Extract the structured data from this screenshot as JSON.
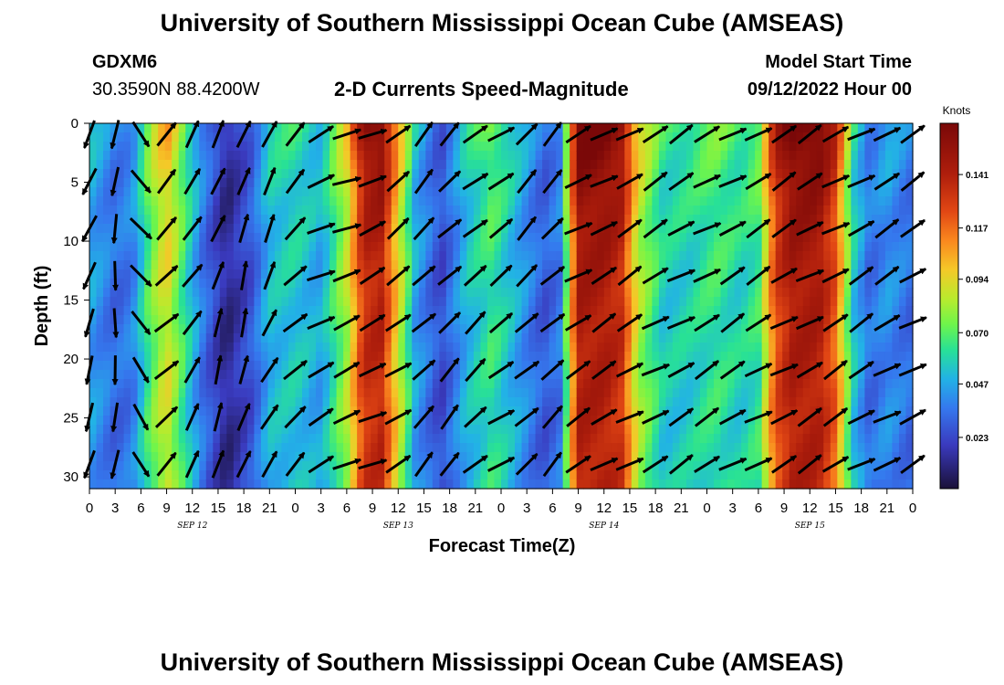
{
  "title": "University of Southern Mississippi Ocean Cube (AMSEAS)",
  "title_repeat": "University of Southern Mississippi Ocean Cube (AMSEAS)",
  "header": {
    "station": "GDXM6",
    "coords": "30.3590N  88.4200W",
    "subtitle": "2-D Currents Speed-Magnitude",
    "model_start_label": "Model Start Time",
    "model_start_value": "09/12/2022 Hour 00"
  },
  "chart_data": {
    "type": "heatmap",
    "title": "2-D Currents Speed-Magnitude",
    "xlabel": "Forecast Time(Z)",
    "ylabel": "Depth (ft)",
    "x_tick_labels": [
      "0",
      "3",
      "6",
      "9",
      "12",
      "15",
      "18",
      "21",
      "0",
      "3",
      "6",
      "9",
      "12",
      "15",
      "18",
      "21",
      "0",
      "3",
      "6",
      "9",
      "12",
      "15",
      "18",
      "21",
      "0",
      "3",
      "6",
      "9",
      "12",
      "15",
      "18",
      "21",
      "0"
    ],
    "x_range_hours": [
      0,
      96
    ],
    "date_labels": [
      {
        "text": "SEP 12",
        "hour": 12
      },
      {
        "text": "SEP 13",
        "hour": 36
      },
      {
        "text": "SEP 14",
        "hour": 60
      },
      {
        "text": "SEP 15",
        "hour": 84
      }
    ],
    "y_tick_labels": [
      "0",
      "5",
      "10",
      "15",
      "20",
      "25",
      "30"
    ],
    "y_ticks": [
      0,
      5,
      10,
      15,
      20,
      25,
      30
    ],
    "y_range_ft": [
      0,
      31
    ],
    "y_inverted": true,
    "colorbar": {
      "units": "Knots",
      "tick_labels": [
        "0.141",
        "0.117",
        "0.094",
        "0.070",
        "0.047",
        "0.023"
      ],
      "ticks": [
        0.141,
        0.117,
        0.094,
        0.07,
        0.047,
        0.023
      ],
      "range": [
        0.0,
        0.164
      ]
    },
    "time_profile_knots": [
      {
        "hour": 0,
        "value": 0.05
      },
      {
        "hour": 3,
        "value": 0.035
      },
      {
        "hour": 5,
        "value": 0.04
      },
      {
        "hour": 7,
        "value": 0.075
      },
      {
        "hour": 9,
        "value": 0.1
      },
      {
        "hour": 11,
        "value": 0.07
      },
      {
        "hour": 13,
        "value": 0.04
      },
      {
        "hour": 16,
        "value": 0.012
      },
      {
        "hour": 19,
        "value": 0.03
      },
      {
        "hour": 21,
        "value": 0.055
      },
      {
        "hour": 24,
        "value": 0.06
      },
      {
        "hour": 27,
        "value": 0.05
      },
      {
        "hour": 30,
        "value": 0.09
      },
      {
        "hour": 32,
        "value": 0.145
      },
      {
        "hour": 34,
        "value": 0.15
      },
      {
        "hour": 36,
        "value": 0.1
      },
      {
        "hour": 38,
        "value": 0.05
      },
      {
        "hour": 41,
        "value": 0.025
      },
      {
        "hour": 44,
        "value": 0.055
      },
      {
        "hour": 47,
        "value": 0.07
      },
      {
        "hour": 50,
        "value": 0.05
      },
      {
        "hour": 53,
        "value": 0.03
      },
      {
        "hour": 55,
        "value": 0.04
      },
      {
        "hour": 56,
        "value": 0.1
      },
      {
        "hour": 57,
        "value": 0.155
      },
      {
        "hour": 60,
        "value": 0.155
      },
      {
        "hour": 62,
        "value": 0.145
      },
      {
        "hour": 64,
        "value": 0.09
      },
      {
        "hour": 67,
        "value": 0.06
      },
      {
        "hour": 70,
        "value": 0.062
      },
      {
        "hour": 73,
        "value": 0.07
      },
      {
        "hour": 76,
        "value": 0.062
      },
      {
        "hour": 78,
        "value": 0.07
      },
      {
        "hour": 80,
        "value": 0.135
      },
      {
        "hour": 82,
        "value": 0.155
      },
      {
        "hour": 85,
        "value": 0.155
      },
      {
        "hour": 87,
        "value": 0.13
      },
      {
        "hour": 89,
        "value": 0.06
      },
      {
        "hour": 91,
        "value": 0.035
      },
      {
        "hour": 93,
        "value": 0.045
      },
      {
        "hour": 96,
        "value": 0.035
      }
    ],
    "arrow_columns_hours": [
      0,
      3,
      6,
      9,
      12,
      15,
      18,
      21,
      24,
      27,
      30,
      33,
      36,
      39,
      42,
      45,
      48,
      51,
      54,
      57,
      60,
      63,
      66,
      69,
      72,
      75,
      78,
      81,
      84,
      87,
      90,
      93,
      96
    ],
    "arrow_depths_ft": [
      0,
      4,
      8,
      12,
      16,
      20,
      24,
      28
    ],
    "arrow_direction_profile_deg": [
      {
        "hour": 0,
        "deg": 200
      },
      {
        "hour": 5,
        "deg": 175
      },
      {
        "hour": 9,
        "deg": 45
      },
      {
        "hour": 16,
        "deg": 15
      },
      {
        "hour": 20,
        "deg": 20
      },
      {
        "hour": 24,
        "deg": 45
      },
      {
        "hour": 28,
        "deg": 70
      },
      {
        "hour": 33,
        "deg": 65
      },
      {
        "hour": 40,
        "deg": 40
      },
      {
        "hour": 48,
        "deg": 55
      },
      {
        "hour": 53,
        "deg": 40
      },
      {
        "hour": 57,
        "deg": 60
      },
      {
        "hour": 96,
        "deg": 60
      }
    ]
  }
}
